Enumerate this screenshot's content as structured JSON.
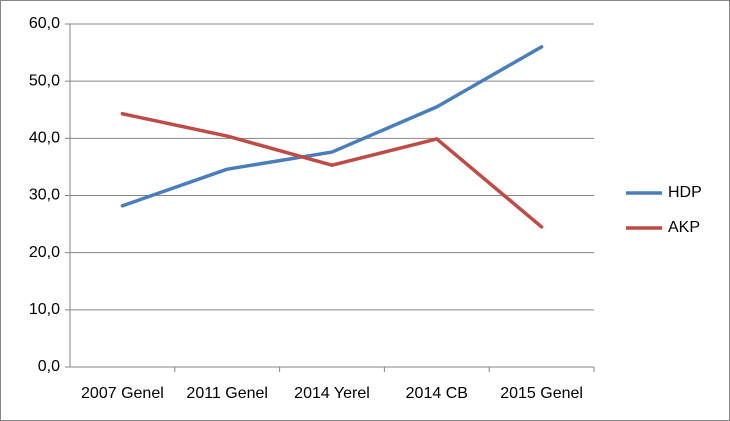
{
  "chart_data": {
    "type": "line",
    "categories": [
      "2007 Genel",
      "2011 Genel",
      "2014 Yerel",
      "2014 CB",
      "2015 Genel"
    ],
    "series": [
      {
        "name": "HDP",
        "color": "#4a7ebb",
        "values": [
          28.2,
          34.6,
          37.6,
          45.5,
          56.0
        ]
      },
      {
        "name": "AKP",
        "color": "#be4b48",
        "values": [
          44.3,
          40.4,
          35.3,
          39.9,
          24.5
        ]
      }
    ],
    "ylim": [
      0,
      60
    ],
    "yticks": [
      {
        "value": 0,
        "label": "0,0"
      },
      {
        "value": 10,
        "label": "10,0"
      },
      {
        "value": 20,
        "label": "20,0"
      },
      {
        "value": 30,
        "label": "30,0"
      },
      {
        "value": 40,
        "label": "40,0"
      },
      {
        "value": 50,
        "label": "50,0"
      },
      {
        "value": 60,
        "label": "60,0"
      }
    ],
    "grid": true,
    "legend": "right"
  }
}
